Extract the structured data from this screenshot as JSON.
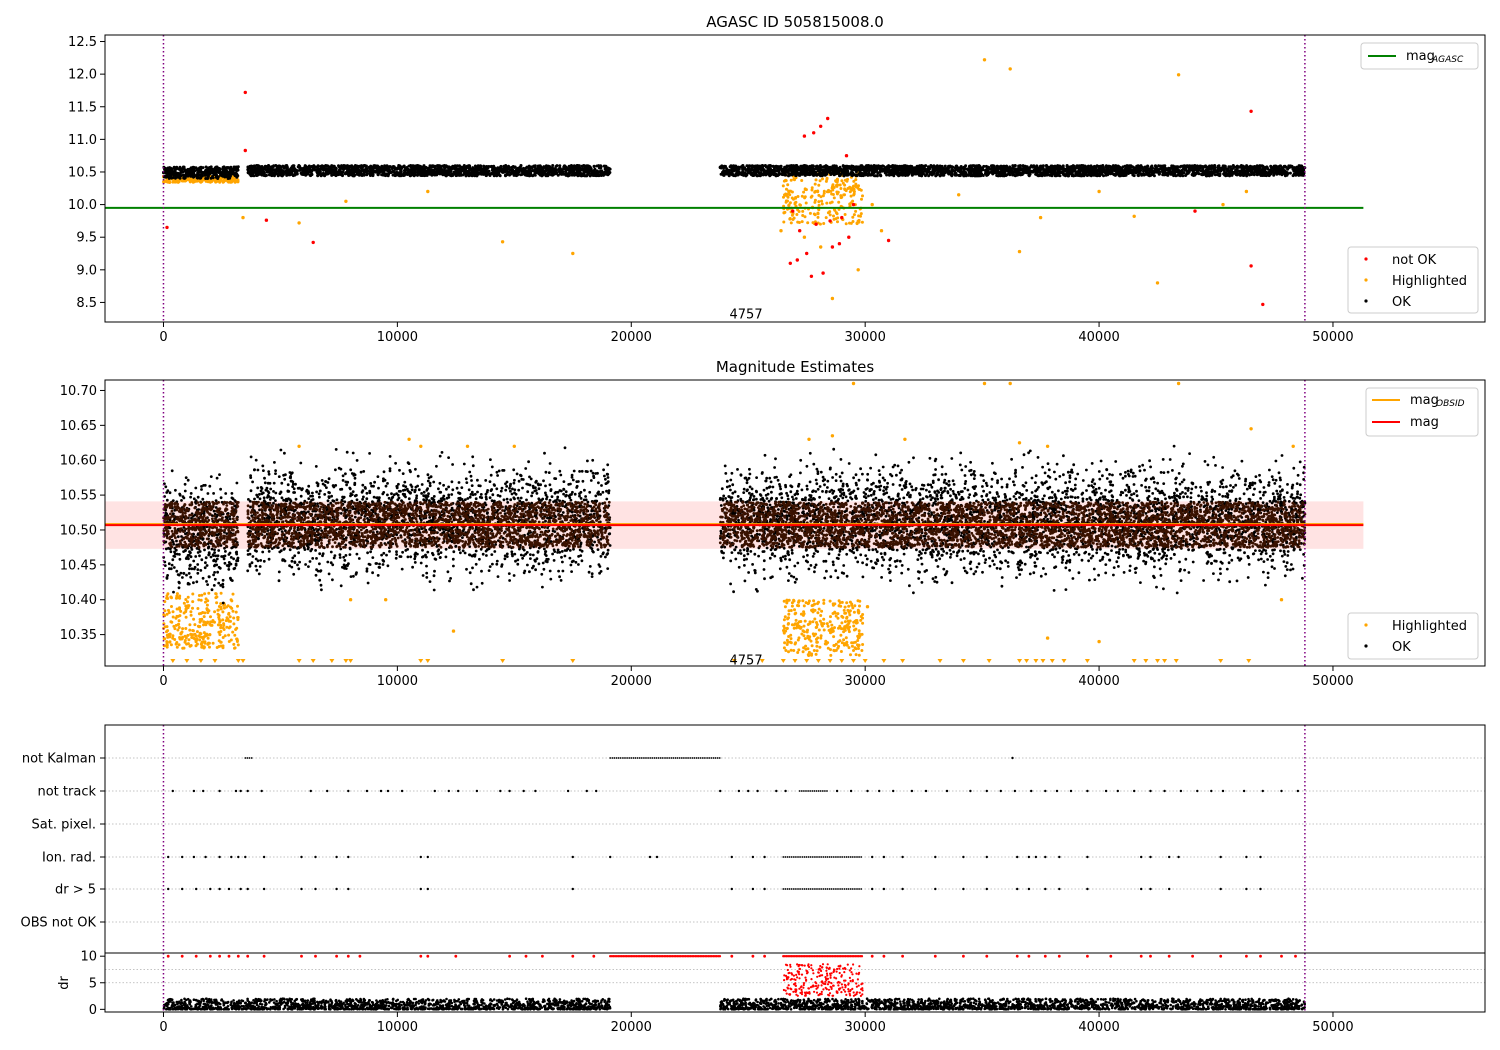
{
  "chart_data": [
    {
      "type": "scatter",
      "title": "AGASC ID 505815008.0",
      "xlim": [
        -2500,
        56500
      ],
      "ylim": [
        8.2,
        12.6
      ],
      "xticks": [
        0,
        10000,
        20000,
        30000,
        40000,
        50000
      ],
      "yticks": [
        8.5,
        9.0,
        9.5,
        10.0,
        10.5,
        11.0,
        11.5,
        12.0,
        12.5
      ],
      "ytick_labels": [
        "8.5",
        "9.0",
        "9.5",
        "10.0",
        "10.5",
        "11.0",
        "11.5",
        "12.0",
        "12.5"
      ],
      "vlines": [
        0,
        48800
      ],
      "hline": {
        "name": "mag",
        "subscript": "AGASC",
        "y": 9.95,
        "x_range": [
          -2500,
          51300
        ],
        "color": "#008000"
      },
      "annotation": {
        "text": "4757",
        "x": 24200,
        "y": 8.33
      },
      "ok_bands": [
        {
          "x": [
            0,
            3200
          ],
          "y_range": [
            10.4,
            10.58
          ]
        },
        {
          "x": [
            3600,
            19100
          ],
          "y_range": [
            10.44,
            10.6
          ]
        },
        {
          "x": [
            23800,
            48800
          ],
          "y_range": [
            10.44,
            10.6
          ]
        }
      ],
      "highlighted_bands": [
        {
          "x": [
            0,
            3200
          ],
          "y_range": [
            10.34,
            10.44
          ]
        },
        {
          "x": [
            26500,
            29900
          ],
          "y_range": [
            9.7,
            10.5
          ]
        }
      ],
      "series": [
        {
          "name": "not OK",
          "color": "#ff0000",
          "points": [
            [
              150,
              9.65
            ],
            [
              3500,
              11.72
            ],
            [
              3500,
              10.83
            ],
            [
              4400,
              9.76
            ],
            [
              6400,
              9.42
            ],
            [
              27400,
              11.05
            ],
            [
              27800,
              11.1
            ],
            [
              28100,
              11.2
            ],
            [
              28400,
              11.32
            ],
            [
              29200,
              10.75
            ],
            [
              26800,
              9.1
            ],
            [
              27100,
              9.15
            ],
            [
              27500,
              9.25
            ],
            [
              27700,
              8.9
            ],
            [
              28200,
              8.95
            ],
            [
              28600,
              9.35
            ],
            [
              28900,
              9.4
            ],
            [
              29300,
              9.5
            ],
            [
              27200,
              9.6
            ],
            [
              27900,
              9.7
            ],
            [
              28500,
              9.75
            ],
            [
              29000,
              9.8
            ],
            [
              29500,
              10.0
            ],
            [
              26900,
              9.9
            ],
            [
              31000,
              9.45
            ],
            [
              44100,
              9.9
            ],
            [
              46500,
              11.43
            ],
            [
              46500,
              9.06
            ],
            [
              47000,
              8.47
            ]
          ]
        },
        {
          "name": "Highlighted",
          "color": "#ffa500",
          "points": [
            [
              3400,
              9.8
            ],
            [
              5800,
              9.72
            ],
            [
              7800,
              10.05
            ],
            [
              11300,
              10.2
            ],
            [
              14500,
              9.43
            ],
            [
              17500,
              9.25
            ],
            [
              30300,
              10.0
            ],
            [
              30700,
              9.6
            ],
            [
              34000,
              10.15
            ],
            [
              35100,
              12.22
            ],
            [
              36200,
              12.08
            ],
            [
              36600,
              9.28
            ],
            [
              37500,
              9.8
            ],
            [
              40000,
              10.2
            ],
            [
              41500,
              9.82
            ],
            [
              42500,
              8.8
            ],
            [
              43400,
              11.99
            ],
            [
              45300,
              10.0
            ],
            [
              46300,
              10.2
            ],
            [
              28600,
              8.56
            ],
            [
              29700,
              9.0
            ],
            [
              26400,
              9.6
            ],
            [
              28100,
              9.35
            ],
            [
              27400,
              9.5
            ]
          ]
        },
        {
          "name": "OK",
          "color": "#000000",
          "points": []
        }
      ],
      "legend": [
        {
          "label": "not OK",
          "color": "#ff0000"
        },
        {
          "label": "Highlighted",
          "color": "#ffa500"
        },
        {
          "label": "OK",
          "color": "#000000"
        }
      ]
    },
    {
      "type": "scatter",
      "title": "Magnitude Estimates",
      "xlim": [
        -2500,
        56500
      ],
      "ylim": [
        10.305,
        10.715
      ],
      "xticks": [
        0,
        10000,
        20000,
        30000,
        40000,
        50000
      ],
      "yticks": [
        10.35,
        10.4,
        10.45,
        10.5,
        10.55,
        10.6,
        10.65,
        10.7
      ],
      "ytick_labels": [
        "10.35",
        "10.40",
        "10.45",
        "10.50",
        "10.55",
        "10.60",
        "10.65",
        "10.70"
      ],
      "vlines": [
        0,
        48800
      ],
      "hlines": [
        {
          "name": "mag",
          "subscript": "OBSID",
          "y": 10.507,
          "color": "#ffa500"
        },
        {
          "name": "mag",
          "subscript": "",
          "y": 10.507,
          "color": "#ff0000"
        }
      ],
      "band": {
        "y_range": [
          10.473,
          10.541
        ],
        "x_range": [
          -2500,
          51300
        ],
        "color": "#ffc0c0"
      },
      "annotation": {
        "text": "4757",
        "x": 24200,
        "y": 10.31
      },
      "ok_bands": [
        {
          "x": [
            0,
            3200
          ],
          "y_range": [
            10.41,
            10.58
          ]
        },
        {
          "x": [
            3600,
            19100
          ],
          "y_range": [
            10.43,
            10.6
          ]
        },
        {
          "x": [
            23800,
            48800
          ],
          "y_range": [
            10.43,
            10.6
          ]
        }
      ],
      "highlighted_bands": [
        {
          "x": [
            0,
            3200
          ],
          "y_range": [
            10.33,
            10.41
          ]
        },
        {
          "x": [
            26500,
            29900
          ],
          "y_range": [
            10.32,
            10.4
          ]
        }
      ],
      "low_markers_x": [
        400,
        1000,
        1600,
        2200,
        3200,
        3400,
        5800,
        6400,
        7200,
        7800,
        8000,
        11000,
        11300,
        14500,
        17500,
        24400,
        25600,
        26500,
        27000,
        27500,
        28000,
        28500,
        29000,
        29500,
        30000,
        30800,
        31600,
        33200,
        34200,
        35300,
        36600,
        36900,
        37300,
        37600,
        38000,
        38500,
        39500,
        41500,
        42000,
        42500,
        42800,
        43300,
        45200,
        46400
      ],
      "series": [
        {
          "name": "Highlighted",
          "color": "#ffa500",
          "points": [
            [
              5800,
              10.62
            ],
            [
              10500,
              10.63
            ],
            [
              11000,
              10.62
            ],
            [
              13000,
              10.62
            ],
            [
              15000,
              10.62
            ],
            [
              27600,
              10.63
            ],
            [
              28600,
              10.635
            ],
            [
              29500,
              10.71
            ],
            [
              30100,
              10.39
            ],
            [
              31700,
              10.63
            ],
            [
              35100,
              10.71
            ],
            [
              36200,
              10.71
            ],
            [
              36600,
              10.625
            ],
            [
              37800,
              10.62
            ],
            [
              37800,
              10.345
            ],
            [
              40000,
              10.34
            ],
            [
              43400,
              10.71
            ],
            [
              46500,
              10.645
            ],
            [
              47800,
              10.4
            ],
            [
              12400,
              10.355
            ],
            [
              8000,
              10.4
            ],
            [
              9500,
              10.4
            ],
            [
              48300,
              10.62
            ]
          ]
        },
        {
          "name": "OK",
          "color": "#000000",
          "points": []
        }
      ],
      "legend_lines": [
        {
          "label": "mag",
          "subscript": "OBSID",
          "color": "#ffa500"
        },
        {
          "label": "mag",
          "subscript": "",
          "color": "#ff0000"
        }
      ],
      "legend": [
        {
          "label": "Highlighted",
          "color": "#ffa500"
        },
        {
          "label": "OK",
          "color": "#000000"
        }
      ]
    },
    {
      "type": "scatter",
      "title": "",
      "xlim": [
        -2500,
        56500
      ],
      "vlines": [
        0,
        48800
      ],
      "categories": [
        "not Kalman",
        "not track",
        "Sat. pixel.",
        "Ion. rad.",
        "dr > 5",
        "OBS not OK"
      ],
      "flags": [
        {
          "category": "not Kalman",
          "dense_ranges": [
            [
              3500,
              3800
            ],
            [
              19100,
              23800
            ]
          ],
          "points": [
            36300
          ]
        },
        {
          "category": "not track",
          "dense_ranges": [
            [
              27200,
              28400
            ]
          ],
          "points": [
            400,
            1300,
            1700,
            2400,
            3100,
            3300,
            3600,
            4200,
            6300,
            7000,
            7900,
            8700,
            9300,
            9600,
            10200,
            11600,
            12200,
            12600,
            13400,
            14400,
            14800,
            15400,
            15900,
            17300,
            18100,
            18500,
            23800,
            24600,
            25000,
            25400,
            26200,
            26600,
            28800,
            29400,
            30100,
            30600,
            31200,
            32000,
            32600,
            33500,
            34500,
            35200,
            35800,
            36400,
            37100,
            37700,
            38200,
            38800,
            39500,
            40300,
            40800,
            41500,
            42200,
            42800,
            43500,
            44200,
            44800,
            45300,
            46200,
            47000,
            47800,
            48500
          ]
        },
        {
          "category": "Sat. pixel.",
          "dense_ranges": [],
          "points": []
        },
        {
          "category": "Ion. rad.",
          "dense_ranges": [
            [
              26500,
              29900
            ]
          ],
          "points": [
            200,
            800,
            1300,
            1800,
            2400,
            2900,
            3200,
            3500,
            4300,
            5900,
            6500,
            7400,
            7900,
            11000,
            11300,
            17500,
            19100,
            20800,
            21100,
            24300,
            25200,
            25700,
            30300,
            30800,
            31600,
            33000,
            34200,
            35200,
            36500,
            37000,
            37300,
            37700,
            38300,
            39500,
            41800,
            42200,
            43000,
            43400,
            45200,
            46300,
            46900
          ]
        },
        {
          "category": "dr > 5",
          "dense_ranges": [
            [
              26500,
              29900
            ]
          ],
          "points": [
            200,
            800,
            1400,
            2000,
            2400,
            2800,
            3300,
            3600,
            4300,
            5900,
            6500,
            7400,
            7900,
            11000,
            11300,
            17500,
            24300,
            25200,
            25700,
            30300,
            30800,
            31600,
            33000,
            34200,
            35200,
            36500,
            37000,
            37700,
            38300,
            39500,
            41800,
            42200,
            43000,
            45200,
            46300,
            46900
          ]
        },
        {
          "category": "OBS not OK",
          "dense_ranges": [],
          "points": []
        }
      ]
    },
    {
      "type": "scatter",
      "title": "",
      "ylabel": "dr",
      "xlim": [
        -2500,
        56500
      ],
      "ylim": [
        -0.5,
        10.6
      ],
      "xticks": [
        0,
        10000,
        20000,
        30000,
        40000,
        50000
      ],
      "yticks": [
        0,
        5,
        10
      ],
      "vlines": [
        0,
        48800
      ],
      "series": [
        {
          "name": "dr",
          "color": "#000000",
          "ranges": [
            [
              0,
              19100,
              0,
              2.0
            ],
            [
              23800,
              48800,
              0,
              2.0
            ]
          ]
        },
        {
          "name": "dr > 5",
          "color": "#ff0000",
          "cap_ranges": [
            [
              19100,
              23800
            ],
            [
              26500,
              29900
            ]
          ],
          "cap_points": [
            200,
            800,
            1400,
            2000,
            2400,
            2800,
            3200,
            3600,
            4300,
            5900,
            6500,
            7400,
            7900,
            8400,
            11000,
            11300,
            12500,
            14800,
            15500,
            16200,
            17500,
            18400,
            24300,
            25200,
            25700,
            30300,
            30800,
            31600,
            33000,
            34200,
            35200,
            36500,
            37000,
            37700,
            38300,
            39500,
            40500,
            41800,
            42200,
            43000,
            44000,
            45200,
            46300,
            46900,
            47800,
            48400
          ],
          "scatter_range": [
            26500,
            29900,
            2.5,
            8.5
          ]
        }
      ]
    }
  ]
}
